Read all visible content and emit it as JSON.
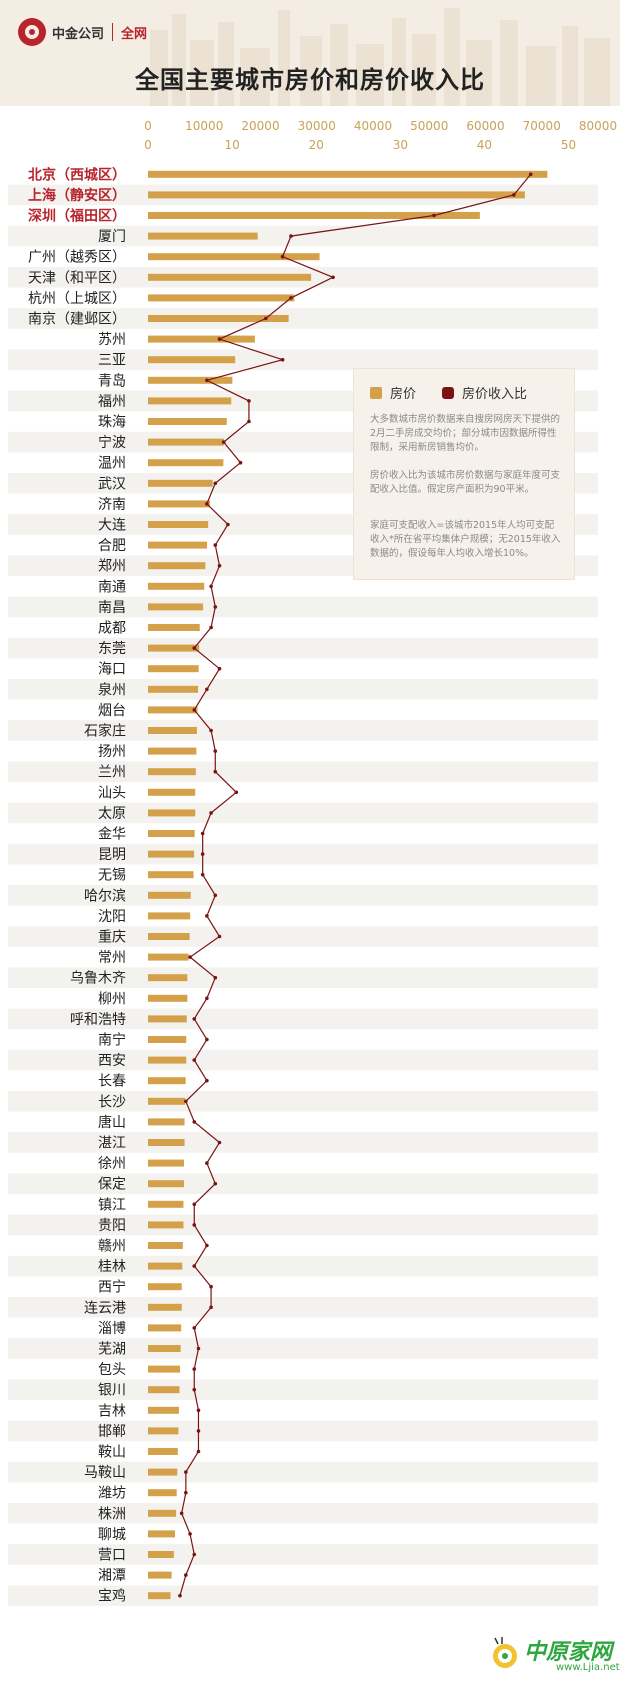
{
  "header": {
    "brand_name": "中金公司",
    "brand_sub": "全网",
    "title": "全国主要城市房价和房价收入比"
  },
  "legend": {
    "price_label": "房价",
    "ratio_label": "房价收入比",
    "note1": "大多数城市房价数据来自搜房网房天下提供的2月二手房成交均价；部分城市因数据所得性限制，采用新房销售均价。",
    "note2": "房价收入比为该城市房价数据与家庭年度可支配收入比值。假定房产面积为90平米。",
    "note3": "家庭可支配收入=该城市2015年人均可支配收入*所在省平均集体户规模；无2015年收入数据的，假设每年人均收入增长10%。"
  },
  "watermark": {
    "text": "中原家网",
    "url": "www.Ljia.net"
  },
  "colors": {
    "bar": "#d4a14a",
    "line": "#7a1414",
    "highlight": "#b8242b",
    "stripe": "#f4f2ef"
  },
  "chart_data": {
    "type": "bar",
    "orientation": "horizontal",
    "title": "全国主要城市房价和房价收入比",
    "categories": [
      "北京（西城区）",
      "上海（静安区）",
      "深圳（福田区）",
      "厦门",
      "广州（越秀区）",
      "天津（和平区）",
      "杭州（上城区）",
      "南京（建邺区）",
      "苏州",
      "三亚",
      "青岛",
      "福州",
      "珠海",
      "宁波",
      "温州",
      "武汉",
      "济南",
      "大连",
      "合肥",
      "郑州",
      "南通",
      "南昌",
      "成都",
      "东莞",
      "海口",
      "泉州",
      "烟台",
      "石家庄",
      "扬州",
      "兰州",
      "汕头",
      "太原",
      "金华",
      "昆明",
      "无锡",
      "哈尔滨",
      "沈阳",
      "重庆",
      "常州",
      "乌鲁木齐",
      "柳州",
      "呼和浩特",
      "南宁",
      "西安",
      "长春",
      "长沙",
      "唐山",
      "湛江",
      "徐州",
      "保定",
      "镇江",
      "贵阳",
      "赣州",
      "桂林",
      "西宁",
      "连云港",
      "淄博",
      "芜湖",
      "包头",
      "银川",
      "吉林",
      "邯郸",
      "鞍山",
      "马鞍山",
      "潍坊",
      "株洲",
      "聊城",
      "营口",
      "湘潭",
      "宝鸡"
    ],
    "highlighted": [
      "北京（西城区）",
      "上海（静安区）",
      "深圳（福田区）"
    ],
    "series": [
      {
        "name": "房价",
        "axis": "top_outer",
        "values": [
          71000,
          67000,
          59000,
          19500,
          30500,
          29000,
          26000,
          25000,
          19000,
          15500,
          15000,
          14800,
          14000,
          13500,
          13400,
          11500,
          11000,
          10700,
          10500,
          10200,
          10000,
          9800,
          9200,
          9100,
          9000,
          8900,
          8800,
          8700,
          8600,
          8500,
          8400,
          8400,
          8300,
          8200,
          8100,
          7600,
          7500,
          7400,
          7200,
          7000,
          7000,
          6900,
          6800,
          6800,
          6700,
          6600,
          6500,
          6500,
          6400,
          6400,
          6300,
          6300,
          6200,
          6100,
          6000,
          6000,
          5900,
          5800,
          5700,
          5600,
          5500,
          5400,
          5300,
          5200,
          5100,
          5000,
          4800,
          4600,
          4200,
          4000
        ]
      },
      {
        "name": "房价收入比",
        "axis": "top_inner",
        "values": [
          45.5,
          43.5,
          34.0,
          17.0,
          16.0,
          22.0,
          17.0,
          14.0,
          8.5,
          16.0,
          7.0,
          12.0,
          12.0,
          9.0,
          11.0,
          8.0,
          7.0,
          9.5,
          8.0,
          8.5,
          7.5,
          8.0,
          7.5,
          5.5,
          8.5,
          7.0,
          5.5,
          7.5,
          8.0,
          8.0,
          10.5,
          7.5,
          6.5,
          6.5,
          6.5,
          8.0,
          7.0,
          8.5,
          5.0,
          8.0,
          7.0,
          5.5,
          7.0,
          5.5,
          7.0,
          4.5,
          5.5,
          8.5,
          7.0,
          8.0,
          5.5,
          5.5,
          7.0,
          5.5,
          7.5,
          7.5,
          5.5,
          6.0,
          5.5,
          5.5,
          6.0,
          6.0,
          6.0,
          4.5,
          4.5,
          4.0,
          5.0,
          5.5,
          4.5,
          3.8
        ]
      }
    ],
    "x_axis_outer": {
      "range": [
        0,
        80000
      ],
      "ticks": [
        "0",
        "10000",
        "20000",
        "30000",
        "40000",
        "50000",
        "60000",
        "70000",
        "80000"
      ]
    },
    "x_axis_inner": {
      "range": [
        0,
        50
      ],
      "ticks": [
        "0",
        "10",
        "20",
        "30",
        "40",
        "50"
      ]
    },
    "grid": "alternating row stripes",
    "legend_position": "right-middle"
  }
}
